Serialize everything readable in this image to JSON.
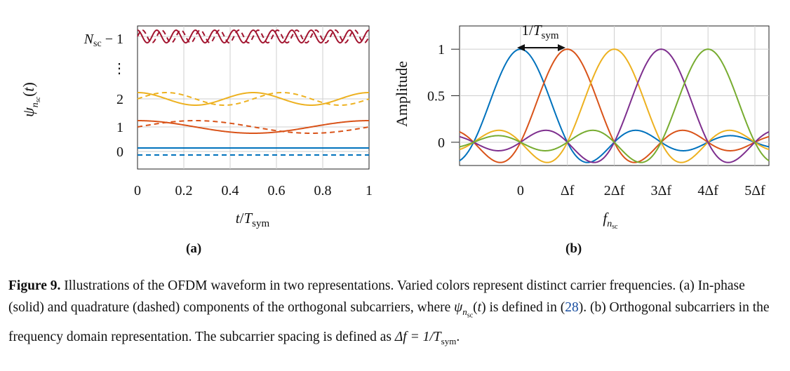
{
  "panels": {
    "a": {
      "label": "(a)",
      "y_tick_labels": [
        "0",
        "1",
        "2",
        "⋮",
        "N_sc − 1"
      ],
      "x_tick_labels": [
        "0",
        "0.2",
        "0.4",
        "0.6",
        "0.8",
        "1"
      ],
      "ylabel": "ψ_{n_sc}(t)",
      "xlabel": "t / T_sym"
    },
    "b": {
      "label": "(b)",
      "ylabel": "Amplitude",
      "y_tick_labels": [
        "0",
        "0.5",
        "1"
      ],
      "x_tick_labels": [
        "0",
        "Δf",
        "2Δf",
        "3Δf",
        "4Δf",
        "5Δf"
      ],
      "xlabel": "f_{n_sc}",
      "annotation": "1/T_sym"
    }
  },
  "colors": {
    "blue": "#0072BD",
    "orange": "#D95319",
    "yellow": "#EDB120",
    "purple": "#7E2F8E",
    "green": "#77AC30",
    "crimson": "#A2142F"
  },
  "chart_data": [
    {
      "type": "line",
      "panel": "a",
      "xlabel": "t/T_sym",
      "ylabel": "ψ_{n_sc}(t)",
      "xlim": [
        0,
        1
      ],
      "series": [
        {
          "name": "",
          "subcarrier": "0",
          "color": "#0072BD",
          "in_phase_offset": 0,
          "freq": 0
        },
        {
          "name": "",
          "subcarrier": "1",
          "color": "#D95319",
          "in_phase_offset": 1,
          "freq": 1
        },
        {
          "name": "",
          "subcarrier": "2",
          "color": "#EDB120",
          "in_phase_offset": 2,
          "freq": 2
        },
        {
          "name": "",
          "subcarrier": "N_sc − 1",
          "color": "#A2142F",
          "in_phase_offset": 4,
          "freq": 12
        }
      ]
    },
    {
      "type": "line",
      "panel": "b",
      "xlabel": "f_{n_sc}",
      "ylabel": "Amplitude",
      "ylim": [
        -0.25,
        1.25
      ],
      "xlim": [
        -1.3,
        5.3
      ],
      "series": [
        {
          "name": "",
          "center": 0,
          "color": "#0072BD"
        },
        {
          "name": "",
          "center": 1,
          "color": "#D95319"
        },
        {
          "name": "",
          "center": 2,
          "color": "#EDB120"
        },
        {
          "name": "",
          "center": 3,
          "color": "#7E2F8E"
        },
        {
          "name": "",
          "center": 4,
          "color": "#77AC30"
        }
      ]
    }
  ],
  "caption": {
    "bold": "Figure 9.",
    "text1": " Illustrations of the OFDM waveform in two representations. Varied colors represent distinct carrier frequencies. (a) In-phase (solid) and quadrature (dashed) components of the orthogonal subcarriers, where ",
    "math1": "ψ",
    "text2": " is defined in (",
    "ref": "28",
    "text3": "). (b) Orthogonal subcarriers in the frequency domain representation. The subcarrier spacing is defined as ",
    "math2": "Δf = 1/T",
    "math2sub": "sym",
    "text4": "."
  }
}
